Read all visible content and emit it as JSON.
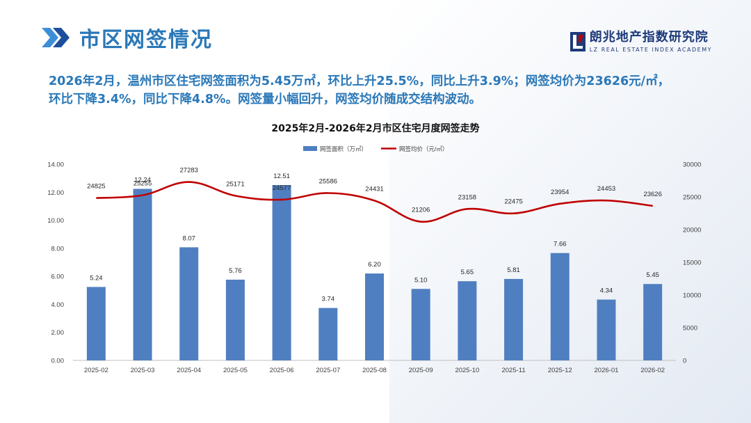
{
  "header": {
    "title": "市区网签情况"
  },
  "logo": {
    "cn": "朗兆地产指数研究院",
    "en": "LZ REAL ESTATE INDEX ACADEMY"
  },
  "summary": {
    "line1": "2026年2月，温州市区住宅网签面积为5.45万㎡，环比上升25.5%，同比上升3.9%；网签均价为23626元/㎡，",
    "line2": "环比下降3.4%，同比下降4.8%。网签量小幅回升，网签均价随成交结构波动。"
  },
  "colors": {
    "bar": "#4f7fc0",
    "line": "#c00000",
    "accent": "#2a78b8"
  },
  "chart_data": {
    "type": "bar+line",
    "title": "2025年2月-2026年2月市区住宅月度网签走势",
    "categories": [
      "2025-02",
      "2025-03",
      "2025-04",
      "2025-05",
      "2025-06",
      "2025-07",
      "2025-08",
      "2025-09",
      "2025-10",
      "2025-11",
      "2025-12",
      "2026-01",
      "2026-02"
    ],
    "series": [
      {
        "name": "网签面积（万㎡）",
        "type": "bar",
        "axis": "left",
        "values": [
          5.24,
          12.24,
          8.07,
          5.76,
          12.51,
          3.74,
          6.2,
          5.1,
          5.65,
          5.81,
          7.66,
          4.34,
          5.45
        ],
        "labels": [
          "5.24",
          "12.24",
          "8.07",
          "5.76",
          "12.51",
          "3.74",
          "6.20",
          "5.10",
          "5.65",
          "5.81",
          "7.66",
          "4.34",
          "5.45"
        ]
      },
      {
        "name": "网签均价（元/㎡）",
        "type": "line",
        "axis": "right",
        "values": [
          24825,
          25255,
          27283,
          25171,
          24577,
          25586,
          24431,
          21206,
          23158,
          22475,
          23954,
          24453,
          23626
        ],
        "labels": [
          "24825",
          "25255",
          "27283",
          "25171",
          "24577",
          "25586",
          "24431",
          "21206",
          "23158",
          "22475",
          "23954",
          "24453",
          "23626"
        ]
      }
    ],
    "y_left": {
      "min": 0,
      "max": 14,
      "ticks": [
        "0.00",
        "2.00",
        "4.00",
        "6.00",
        "8.00",
        "10.00",
        "12.00",
        "14.00"
      ]
    },
    "y_right": {
      "min": 0,
      "max": 30000,
      "ticks": [
        "0",
        "5000",
        "10000",
        "15000",
        "20000",
        "25000",
        "30000"
      ]
    },
    "legend": "top-center"
  }
}
